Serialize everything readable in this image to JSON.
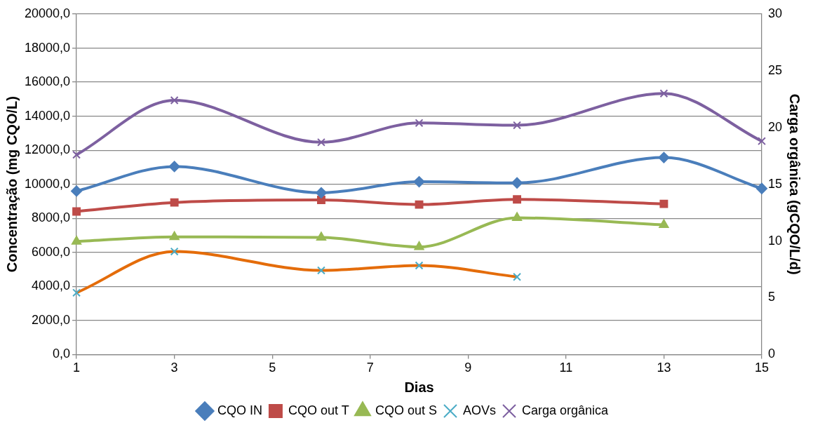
{
  "chart_data": {
    "type": "line",
    "xlabel": "Dias",
    "ylabel": "Concentração (mg CQO/L)",
    "y2label": "Carga orgânica (gCQO/L/d)",
    "x": [
      1,
      3,
      6,
      8,
      10,
      13,
      15
    ],
    "xlim": [
      1,
      15
    ],
    "xticks": [
      1,
      3,
      5,
      7,
      9,
      11,
      13,
      15
    ],
    "ylim": [
      0,
      20000
    ],
    "yticks": [
      {
        "value": 0,
        "label": "0,0"
      },
      {
        "value": 2000,
        "label": "2000,0"
      },
      {
        "value": 4000,
        "label": "4000,0"
      },
      {
        "value": 6000,
        "label": "6000,0"
      },
      {
        "value": 8000,
        "label": "8000,0"
      },
      {
        "value": 10000,
        "label": "10000,0"
      },
      {
        "value": 12000,
        "label": "12000,0"
      },
      {
        "value": 14000,
        "label": "14000,0"
      },
      {
        "value": 16000,
        "label": "16000,0"
      },
      {
        "value": 18000,
        "label": "18000,0"
      },
      {
        "value": 20000,
        "label": "20000,0"
      }
    ],
    "y2lim": [
      0,
      30
    ],
    "y2ticks": [
      0,
      5,
      10,
      15,
      20,
      25,
      30
    ],
    "grid": "y",
    "legend": "bottom",
    "series": [
      {
        "name": "CQO IN",
        "color": "#4a7ebb",
        "marker": "diamond",
        "values": [
          9600,
          11040,
          9500,
          10150,
          10080,
          11570,
          9750
        ]
      },
      {
        "name": "CQO out T",
        "color": "#be4b48",
        "marker": "square",
        "values": [
          8400,
          8930,
          9080,
          8810,
          9110,
          8850,
          null
        ]
      },
      {
        "name": "CQO out S",
        "color": "#98b954",
        "marker": "triangle",
        "values": [
          6640,
          6910,
          6880,
          6320,
          8030,
          7620,
          null
        ]
      },
      {
        "name": "AOVs",
        "color": "#e46c0a",
        "marker": "cross",
        "values": [
          3630,
          6050,
          4940,
          5230,
          4560,
          null,
          null
        ]
      },
      {
        "name": "Carga orgânica",
        "color": "#7d60a0",
        "marker": "cross",
        "axis": "y2",
        "values": [
          17.6,
          22.4,
          18.7,
          20.4,
          20.2,
          23.0,
          18.8
        ]
      }
    ]
  }
}
